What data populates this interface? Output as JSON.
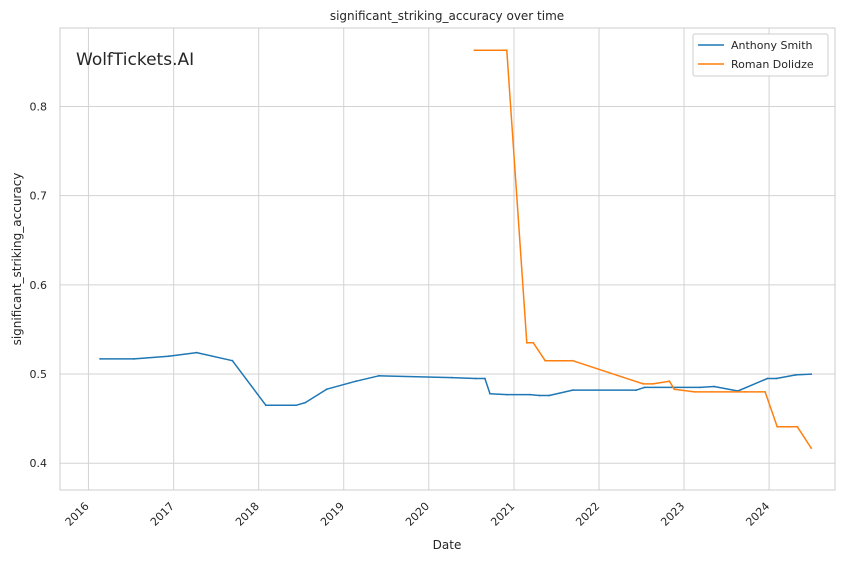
{
  "watermark": "WolfTickets.AI",
  "colors": {
    "anthony": "#1f77b4",
    "roman": "#ff7f0e",
    "grid": "#d3d3d3",
    "frame": "#cccccc",
    "watermark": "#c4c4c4"
  },
  "chart_data": {
    "type": "line",
    "title": "significant_striking_accuracy over time",
    "xlabel": "Date",
    "ylabel": "significant_striking_accuracy",
    "x_ticks": [
      "2016",
      "2017",
      "2018",
      "2019",
      "2020",
      "2021",
      "2022",
      "2023",
      "2024"
    ],
    "y_ticks": [
      "0.4",
      "0.5",
      "0.6",
      "0.7",
      "0.8"
    ],
    "xlim": [
      "2015-09-01",
      "2024-10-10"
    ],
    "ylim": [
      0.37,
      0.888
    ],
    "grid": true,
    "legend": "top-right",
    "series": [
      {
        "name": "Anthony Smith",
        "color_key": "anthony",
        "points": [
          [
            "2016-02-20",
            0.517
          ],
          [
            "2016-07-15",
            0.517
          ],
          [
            "2016-12-10",
            0.52
          ],
          [
            "2017-04-10",
            0.524
          ],
          [
            "2017-09-10",
            0.515
          ],
          [
            "2018-02-01",
            0.465
          ],
          [
            "2018-06-10",
            0.465
          ],
          [
            "2018-07-20",
            0.468
          ],
          [
            "2018-10-20",
            0.483
          ],
          [
            "2019-02-23",
            0.492
          ],
          [
            "2019-06-01",
            0.498
          ],
          [
            "2020-04-10",
            0.496
          ],
          [
            "2020-07-20",
            0.495
          ],
          [
            "2020-08-29",
            0.495
          ],
          [
            "2020-09-20",
            0.478
          ],
          [
            "2020-12-01",
            0.477
          ],
          [
            "2021-03-10",
            0.477
          ],
          [
            "2021-04-20",
            0.476
          ],
          [
            "2021-06-01",
            0.476
          ],
          [
            "2021-09-10",
            0.482
          ],
          [
            "2022-06-10",
            0.482
          ],
          [
            "2022-07-15",
            0.485
          ],
          [
            "2023-03-10",
            0.485
          ],
          [
            "2023-05-10",
            0.486
          ],
          [
            "2023-08-20",
            0.481
          ],
          [
            "2023-12-25",
            0.495
          ],
          [
            "2024-02-01",
            0.495
          ],
          [
            "2024-04-25",
            0.499
          ],
          [
            "2024-06-30",
            0.5
          ]
        ]
      },
      {
        "name": "Roman Dolidze",
        "color_key": "roman",
        "points": [
          [
            "2020-07-15",
            0.863
          ],
          [
            "2020-12-01",
            0.863
          ],
          [
            "2021-02-25",
            0.535
          ],
          [
            "2021-03-25",
            0.535
          ],
          [
            "2021-05-15",
            0.515
          ],
          [
            "2021-09-10",
            0.515
          ],
          [
            "2022-07-10",
            0.489
          ],
          [
            "2022-08-20",
            0.489
          ],
          [
            "2022-10-30",
            0.492
          ],
          [
            "2022-11-20",
            0.483
          ],
          [
            "2023-02-15",
            0.48
          ],
          [
            "2023-09-20",
            0.48
          ],
          [
            "2023-12-15",
            0.48
          ],
          [
            "2024-02-05",
            0.441
          ],
          [
            "2024-05-01",
            0.441
          ],
          [
            "2024-06-30",
            0.417
          ]
        ]
      }
    ]
  }
}
